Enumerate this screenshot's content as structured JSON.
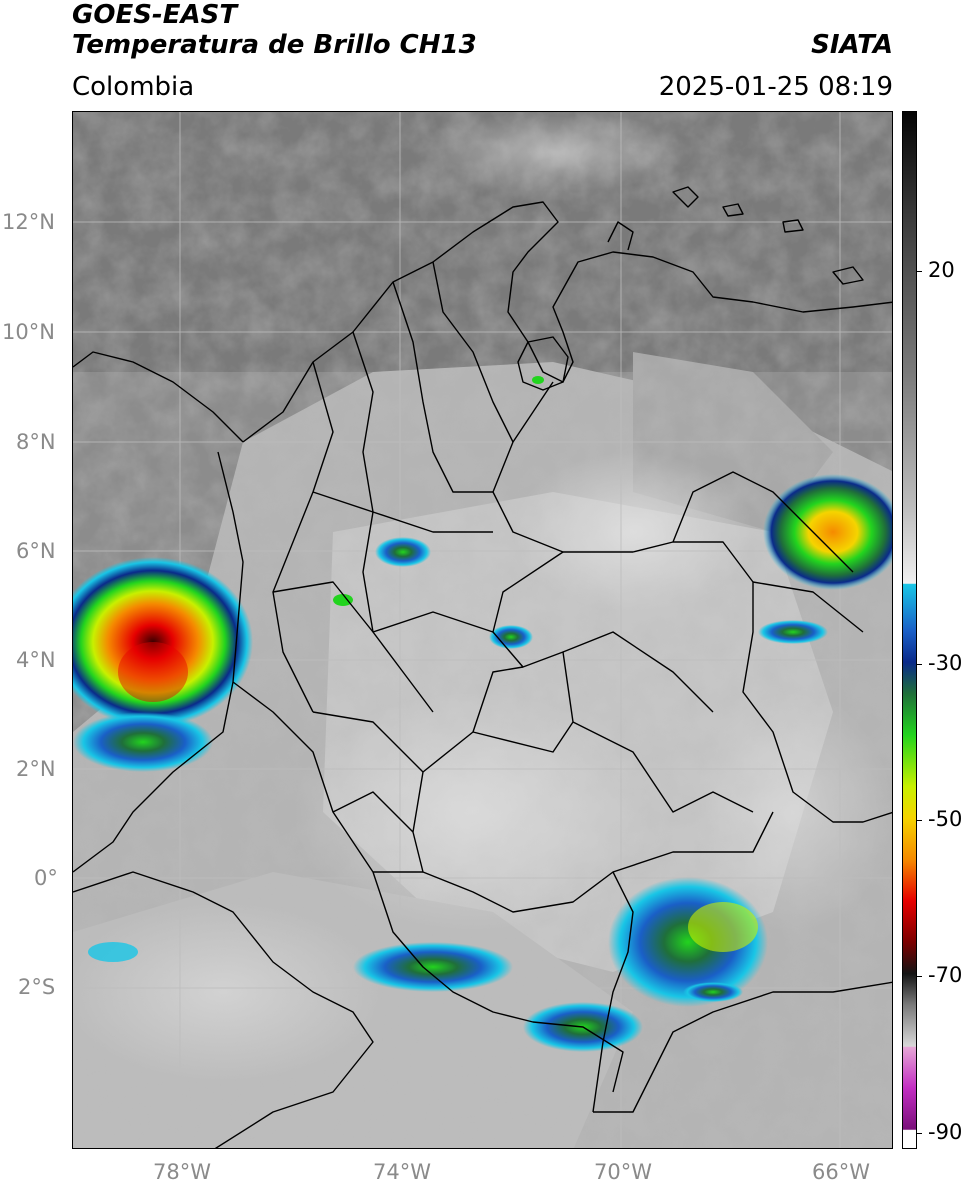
{
  "header": {
    "satellite": "GOES-EAST",
    "product": "Temperatura de Brillo CH13",
    "region": "Colombia",
    "agency": "SIATA",
    "timestamp": "2025-01-25 08:19"
  },
  "map": {
    "lat_labels": [
      "12°N",
      "10°N",
      "8°N",
      "6°N",
      "4°N",
      "2°N",
      "0°",
      "2°S"
    ],
    "lon_labels": [
      "78°W",
      "74°W",
      "70°W",
      "66°W"
    ],
    "colors": {
      "background_gray": "#9a9a9a",
      "land_light": "#c8c8c8",
      "sea_dark": "#6e6e6e",
      "border": "#000000"
    }
  },
  "colorbar": {
    "ticks": [
      "20",
      "-30",
      "-50",
      "-70",
      "-90"
    ],
    "unit": "",
    "colors": [
      "#0a0a0a",
      "#3a3a3a",
      "#6a6a6a",
      "#9a9a9a",
      "#c8c8c8",
      "#ececec",
      "#19c6e6",
      "#1a5fc7",
      "#0a2a8a",
      "#1f6f3a",
      "#22d41e",
      "#c8f000",
      "#f5d400",
      "#f58a00",
      "#e60000",
      "#7a0000",
      "#141414",
      "#8a8a8a",
      "#e6a6d6",
      "#c32ec3",
      "#7a0f7a",
      "#ffffff"
    ]
  }
}
